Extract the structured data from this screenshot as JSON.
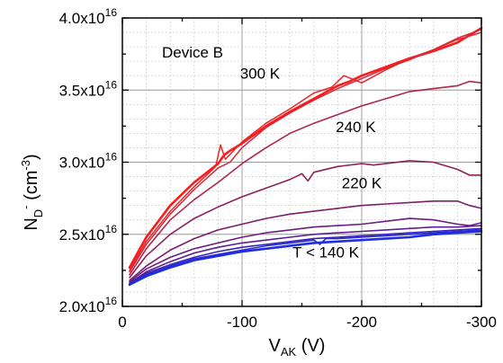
{
  "chart_data": {
    "type": "line",
    "title": "",
    "annotation_device": "Device B",
    "ylabel": {
      "main": "N",
      "sub": "D",
      "sup": "-",
      "unit_open": " (cm",
      "unit_sup": "-3",
      "unit_close": ")"
    },
    "xlabel": {
      "main": "V",
      "sub": "AK",
      "unit": " (V)"
    },
    "xlim": [
      0,
      -300
    ],
    "ylim": [
      2e+16,
      4e+16
    ],
    "x_ticks": [
      {
        "value": 0,
        "label": "0"
      },
      {
        "value": -100,
        "label": "-100"
      },
      {
        "value": -200,
        "label": "-200"
      },
      {
        "value": -300,
        "label": "-300"
      }
    ],
    "y_ticks": [
      {
        "value": 2e+16,
        "mantissa": "2.0x10",
        "exp": "16"
      },
      {
        "value": 2.5e+16,
        "mantissa": "2.5x10",
        "exp": "16"
      },
      {
        "value": 3e+16,
        "mantissa": "3.0x10",
        "exp": "16"
      },
      {
        "value": 3.5e+16,
        "mantissa": "3.5x10",
        "exp": "16"
      },
      {
        "value": 4e+16,
        "mantissa": "4.0x10",
        "exp": "16"
      }
    ],
    "grid": true,
    "series_labels": [
      {
        "text": "300 K",
        "x": -115,
        "y": 3.58e+16
      },
      {
        "text": "240 K",
        "x": -195,
        "y": 3.21e+16
      },
      {
        "text": "220 K",
        "x": -200,
        "y": 2.82e+16
      },
      {
        "text": "T < 140 K",
        "x": -170,
        "y": 2.34e+16
      }
    ],
    "series": [
      {
        "color": "#ff1a1a",
        "width": 2.6,
        "x": [
          -6,
          -20,
          -40,
          -60,
          -80,
          -85,
          -90,
          -100,
          -120,
          -140,
          -160,
          -180,
          -190,
          -200,
          -220,
          -240,
          -260,
          -280,
          -300
        ],
        "y": [
          2.27e+16,
          2.48e+16,
          2.7e+16,
          2.86e+16,
          2.99e+16,
          3.05e+16,
          3.08e+16,
          3.13e+16,
          3.25e+16,
          3.35e+16,
          3.44e+16,
          3.53e+16,
          3.56e+16,
          3.6e+16,
          3.66e+16,
          3.72e+16,
          3.77e+16,
          3.83e+16,
          3.93e+16
        ]
      },
      {
        "color": "#e8282d",
        "width": 1.5,
        "x": [
          -6,
          -20,
          -40,
          -60,
          -78,
          -82,
          -86,
          -100,
          -120,
          -140,
          -160,
          -175,
          -185,
          -200,
          -220,
          -240,
          -260,
          -280,
          -300
        ],
        "y": [
          2.25e+16,
          2.45e+16,
          2.66e+16,
          2.83e+16,
          2.97e+16,
          3.12e+16,
          3.02e+16,
          3.14e+16,
          3.27e+16,
          3.37e+16,
          3.48e+16,
          3.52e+16,
          3.6e+16,
          3.55e+16,
          3.64e+16,
          3.72e+16,
          3.78e+16,
          3.85e+16,
          3.9e+16
        ]
      },
      {
        "color": "#d4283c",
        "width": 1.5,
        "x": [
          -6,
          -20,
          -40,
          -60,
          -80,
          -90,
          -100,
          -120,
          -140,
          -160,
          -180,
          -200,
          -220,
          -240,
          -260,
          -280,
          -300
        ],
        "y": [
          2.24e+16,
          2.43e+16,
          2.64e+16,
          2.81e+16,
          2.96e+16,
          3e+16,
          3.1e+16,
          3.24e+16,
          3.34e+16,
          3.43e+16,
          3.51e+16,
          3.58e+16,
          3.65e+16,
          3.71e+16,
          3.78e+16,
          3.86e+16,
          3.92e+16
        ]
      },
      {
        "color": "#b0264a",
        "width": 1.6,
        "x": [
          -6,
          -20,
          -40,
          -60,
          -80,
          -100,
          -120,
          -140,
          -160,
          -180,
          -200,
          -220,
          -240,
          -260,
          -280,
          -290,
          -300
        ],
        "y": [
          2.22e+16,
          2.4e+16,
          2.6e+16,
          2.74e+16,
          2.86e+16,
          2.99e+16,
          3.1e+16,
          3.2e+16,
          3.27e+16,
          3.33e+16,
          3.39e+16,
          3.44e+16,
          3.49e+16,
          3.51e+16,
          3.53e+16,
          3.56e+16,
          3.55e+16
        ]
      },
      {
        "color": "#8f2058",
        "width": 1.6,
        "x": [
          -6,
          -20,
          -40,
          -60,
          -80,
          -100,
          -120,
          -140,
          -150,
          -155,
          -160,
          -180,
          -200,
          -210,
          -220,
          -240,
          -260,
          -280,
          -290,
          -300
        ],
        "y": [
          2.2e+16,
          2.35e+16,
          2.5e+16,
          2.61e+16,
          2.69e+16,
          2.76e+16,
          2.82e+16,
          2.88e+16,
          2.92e+16,
          2.87e+16,
          2.93e+16,
          2.97e+16,
          2.99e+16,
          2.98e+16,
          2.99e+16,
          3.01e+16,
          3e+16,
          2.95e+16,
          2.91e+16,
          2.91e+16
        ]
      },
      {
        "color": "#7a1f6a",
        "width": 1.6,
        "x": [
          -6,
          -20,
          -40,
          -60,
          -80,
          -100,
          -120,
          -140,
          -160,
          -180,
          -200,
          -220,
          -240,
          -260,
          -280,
          -290,
          -300
        ],
        "y": [
          2.18e+16,
          2.28e+16,
          2.39e+16,
          2.47e+16,
          2.53e+16,
          2.57e+16,
          2.61e+16,
          2.64e+16,
          2.66e+16,
          2.68e+16,
          2.7e+16,
          2.71e+16,
          2.72e+16,
          2.73e+16,
          2.73e+16,
          2.7e+16,
          2.68e+16
        ]
      },
      {
        "color": "#6a1f80",
        "width": 1.6,
        "x": [
          -6,
          -20,
          -40,
          -60,
          -80,
          -100,
          -120,
          -140,
          -160,
          -180,
          -200,
          -220,
          -240,
          -260,
          -280,
          -290,
          -300
        ],
        "y": [
          2.17e+16,
          2.26e+16,
          2.34e+16,
          2.4e+16,
          2.44e+16,
          2.48e+16,
          2.51e+16,
          2.53e+16,
          2.55e+16,
          2.56e+16,
          2.57e+16,
          2.59e+16,
          2.61e+16,
          2.6e+16,
          2.57e+16,
          2.56e+16,
          2.58e+16
        ]
      },
      {
        "color": "#5a1f95",
        "width": 1.6,
        "x": [
          -6,
          -20,
          -40,
          -60,
          -80,
          -100,
          -120,
          -140,
          -160,
          -180,
          -200,
          -220,
          -240,
          -260,
          -280,
          -300
        ],
        "y": [
          2.16e+16,
          2.24e+16,
          2.31e+16,
          2.37e+16,
          2.41e+16,
          2.44e+16,
          2.46e+16,
          2.48e+16,
          2.5e+16,
          2.51e+16,
          2.52e+16,
          2.53e+16,
          2.54e+16,
          2.55e+16,
          2.55e+16,
          2.56e+16
        ]
      },
      {
        "color": "#3a22b8",
        "width": 1.6,
        "x": [
          -6,
          -20,
          -40,
          -60,
          -80,
          -100,
          -120,
          -140,
          -160,
          -180,
          -200,
          -220,
          -240,
          -260,
          -280,
          -300
        ],
        "y": [
          2.16e+16,
          2.23e+16,
          2.29e+16,
          2.34e+16,
          2.38e+16,
          2.41e+16,
          2.43e+16,
          2.45e+16,
          2.47e+16,
          2.48e+16,
          2.49e+16,
          2.5e+16,
          2.51e+16,
          2.52e+16,
          2.53e+16,
          2.54e+16
        ]
      },
      {
        "color": "#2a2ad0",
        "width": 1.6,
        "x": [
          -6,
          -20,
          -40,
          -60,
          -80,
          -100,
          -120,
          -140,
          -160,
          -165,
          -170,
          -180,
          -200,
          -220,
          -240,
          -260,
          -280,
          -300
        ],
        "y": [
          2.15e+16,
          2.22e+16,
          2.28e+16,
          2.33e+16,
          2.36e+16,
          2.39e+16,
          2.42e+16,
          2.44e+16,
          2.46e+16,
          2.43e+16,
          2.47e+16,
          2.47e+16,
          2.48e+16,
          2.49e+16,
          2.5e+16,
          2.51e+16,
          2.52e+16,
          2.53e+16
        ]
      },
      {
        "color": "#1f2ee0",
        "width": 2.6,
        "x": [
          -6,
          -20,
          -40,
          -60,
          -80,
          -100,
          -120,
          -140,
          -160,
          -180,
          -200,
          -220,
          -240,
          -260,
          -280,
          -300
        ],
        "y": [
          2.15e+16,
          2.21e+16,
          2.27e+16,
          2.32e+16,
          2.35e+16,
          2.38e+16,
          2.4e+16,
          2.42e+16,
          2.44e+16,
          2.45e+16,
          2.46e+16,
          2.47e+16,
          2.48e+16,
          2.5e+16,
          2.51e+16,
          2.52e+16
        ]
      }
    ]
  }
}
